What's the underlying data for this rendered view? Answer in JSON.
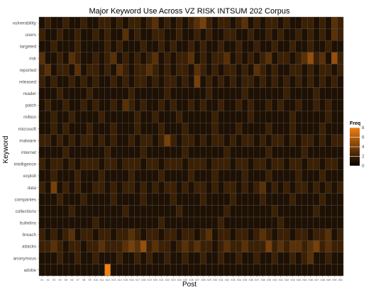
{
  "chart_data": {
    "type": "heatmap",
    "title": "Major Keyword Use Across VZ RISK INTSUM 202 Corpus",
    "xlabel": "Post",
    "ylabel": "Keyword",
    "x": [
      "X1",
      "X2",
      "X3",
      "X4",
      "X5",
      "X6",
      "X7",
      "X8",
      "X9",
      "X10",
      "X11",
      "X12",
      "X13",
      "X14",
      "X15",
      "X16",
      "X17",
      "X18",
      "X19",
      "X20",
      "X21",
      "X22",
      "X23",
      "X24",
      "X25",
      "X26",
      "X27",
      "X28",
      "X29",
      "X30",
      "X31",
      "X32",
      "X33",
      "X34",
      "X35",
      "X36",
      "X37",
      "X38",
      "X39",
      "X40",
      "X41",
      "X42",
      "X43",
      "X44",
      "X45",
      "X46",
      "X47",
      "X48",
      "X49",
      "X50",
      "X51"
    ],
    "y": [
      "vulnerability",
      "users",
      "targeted",
      "risk",
      "reported",
      "released",
      "reader",
      "patch",
      "million",
      "microsoft",
      "malware",
      "internet",
      "intelligence",
      "exploit",
      "data",
      "companies",
      "collections",
      "bulletins",
      "breach",
      "attacks",
      "anonymous",
      "adobe"
    ],
    "z": [
      [
        1,
        2,
        1,
        1,
        2,
        1,
        1,
        2,
        1,
        1,
        2,
        2,
        1,
        2,
        1,
        2,
        2,
        1,
        2,
        3,
        1,
        2,
        1,
        2,
        1,
        2,
        3,
        4,
        2,
        1,
        2,
        2,
        1,
        2,
        3,
        1,
        2,
        1,
        2,
        2,
        1,
        2,
        1,
        1,
        2,
        2,
        1,
        2,
        1,
        3,
        2
      ],
      [
        2,
        1,
        1,
        2,
        1,
        1,
        2,
        1,
        1,
        2,
        1,
        2,
        1,
        1,
        3,
        1,
        2,
        1,
        1,
        2,
        2,
        1,
        1,
        2,
        1,
        1,
        2,
        1,
        2,
        1,
        1,
        2,
        2,
        1,
        1,
        2,
        1,
        1,
        2,
        1,
        2,
        1,
        1,
        2,
        1,
        2,
        1,
        2,
        1,
        3,
        2
      ],
      [
        1,
        1,
        2,
        1,
        1,
        1,
        2,
        1,
        1,
        1,
        1,
        2,
        1,
        2,
        1,
        1,
        1,
        2,
        1,
        1,
        2,
        1,
        2,
        1,
        1,
        2,
        1,
        2,
        1,
        1,
        2,
        1,
        1,
        2,
        1,
        1,
        2,
        1,
        1,
        2,
        1,
        1,
        2,
        1,
        1,
        2,
        1,
        1,
        2,
        1,
        1
      ],
      [
        3,
        1,
        1,
        2,
        1,
        3,
        2,
        1,
        1,
        2,
        1,
        2,
        3,
        1,
        2,
        1,
        2,
        1,
        2,
        3,
        1,
        2,
        1,
        2,
        2,
        3,
        1,
        2,
        1,
        2,
        2,
        3,
        1,
        2,
        1,
        2,
        1,
        2,
        3,
        1,
        2,
        2,
        1,
        2,
        3,
        5,
        2,
        3,
        1,
        5,
        2
      ],
      [
        2,
        3,
        1,
        2,
        2,
        1,
        3,
        1,
        2,
        2,
        1,
        2,
        1,
        3,
        2,
        1,
        2,
        2,
        3,
        2,
        1,
        2,
        1,
        2,
        2,
        1,
        3,
        2,
        1,
        2,
        1,
        2,
        2,
        1,
        2,
        1,
        3,
        2,
        1,
        2,
        1,
        1,
        2,
        2,
        1,
        2,
        1,
        2,
        2,
        1,
        2
      ],
      [
        2,
        1,
        2,
        1,
        1,
        2,
        1,
        2,
        1,
        2,
        1,
        1,
        2,
        1,
        2,
        1,
        2,
        2,
        1,
        2,
        1,
        2,
        2,
        1,
        2,
        1,
        4,
        1,
        2,
        1,
        2,
        1,
        2,
        1,
        2,
        2,
        1,
        2,
        1,
        2,
        1,
        2,
        1,
        2,
        1,
        2,
        1,
        2,
        1,
        2,
        1
      ],
      [
        1,
        1,
        1,
        2,
        1,
        1,
        1,
        1,
        2,
        1,
        1,
        1,
        1,
        1,
        1,
        2,
        1,
        1,
        1,
        1,
        1,
        2,
        1,
        1,
        1,
        1,
        1,
        1,
        2,
        1,
        1,
        1,
        1,
        1,
        2,
        1,
        1,
        1,
        1,
        1,
        1,
        2,
        1,
        1,
        1,
        1,
        2,
        1,
        1,
        1,
        1
      ],
      [
        1,
        2,
        1,
        1,
        2,
        1,
        1,
        2,
        1,
        2,
        1,
        1,
        2,
        1,
        3,
        2,
        1,
        2,
        1,
        1,
        2,
        1,
        2,
        1,
        1,
        2,
        1,
        2,
        1,
        1,
        2,
        1,
        1,
        2,
        1,
        2,
        1,
        1,
        2,
        1,
        2,
        1,
        1,
        2,
        1,
        1,
        2,
        1,
        2,
        1,
        1
      ],
      [
        1,
        1,
        2,
        1,
        1,
        2,
        1,
        1,
        1,
        1,
        2,
        1,
        1,
        1,
        1,
        1,
        2,
        1,
        1,
        2,
        1,
        1,
        1,
        2,
        1,
        1,
        1,
        1,
        1,
        2,
        1,
        1,
        1,
        1,
        1,
        2,
        1,
        1,
        1,
        1,
        1,
        1,
        2,
        1,
        1,
        1,
        1,
        1,
        2,
        1,
        1
      ],
      [
        1,
        1,
        2,
        1,
        2,
        1,
        1,
        1,
        2,
        1,
        1,
        1,
        2,
        1,
        1,
        1,
        2,
        1,
        1,
        1,
        2,
        1,
        1,
        1,
        2,
        1,
        1,
        1,
        1,
        2,
        1,
        1,
        1,
        2,
        1,
        1,
        1,
        1,
        2,
        1,
        1,
        1,
        2,
        1,
        1,
        1,
        1,
        2,
        1,
        1,
        1
      ],
      [
        2,
        2,
        1,
        2,
        1,
        2,
        1,
        2,
        2,
        1,
        2,
        1,
        2,
        1,
        1,
        2,
        1,
        2,
        2,
        1,
        2,
        4,
        2,
        1,
        2,
        2,
        1,
        2,
        1,
        2,
        2,
        1,
        2,
        1,
        2,
        2,
        1,
        2,
        1,
        2,
        2,
        1,
        2,
        1,
        2,
        2,
        1,
        2,
        1,
        2,
        2
      ],
      [
        1,
        1,
        1,
        1,
        2,
        1,
        1,
        1,
        1,
        1,
        1,
        2,
        1,
        1,
        1,
        1,
        1,
        2,
        1,
        1,
        1,
        1,
        1,
        1,
        2,
        1,
        1,
        1,
        1,
        1,
        1,
        2,
        1,
        1,
        1,
        1,
        1,
        1,
        2,
        1,
        1,
        1,
        1,
        1,
        2,
        1,
        1,
        1,
        1,
        1,
        1
      ],
      [
        2,
        1,
        2,
        2,
        1,
        2,
        1,
        2,
        2,
        2,
        1,
        2,
        2,
        1,
        2,
        2,
        2,
        1,
        2,
        2,
        1,
        2,
        2,
        2,
        1,
        2,
        2,
        2,
        1,
        2,
        2,
        2,
        1,
        2,
        2,
        1,
        2,
        2,
        1,
        2,
        2,
        1,
        2,
        2,
        1,
        2,
        2,
        1,
        2,
        2,
        1
      ],
      [
        1,
        1,
        2,
        1,
        1,
        1,
        2,
        1,
        1,
        1,
        2,
        1,
        1,
        1,
        1,
        2,
        1,
        1,
        1,
        1,
        2,
        1,
        1,
        1,
        1,
        2,
        1,
        1,
        1,
        2,
        1,
        1,
        1,
        1,
        2,
        1,
        1,
        1,
        2,
        1,
        1,
        1,
        1,
        2,
        1,
        1,
        1,
        2,
        1,
        1,
        1
      ],
      [
        2,
        1,
        4,
        1,
        2,
        1,
        2,
        1,
        1,
        2,
        2,
        1,
        2,
        1,
        2,
        2,
        1,
        2,
        1,
        2,
        1,
        2,
        2,
        1,
        2,
        1,
        2,
        2,
        1,
        2,
        1,
        2,
        2,
        1,
        2,
        1,
        2,
        3,
        1,
        2,
        1,
        2,
        1,
        2,
        2,
        1,
        2,
        1,
        2,
        1,
        2
      ],
      [
        1,
        1,
        1,
        2,
        1,
        1,
        1,
        2,
        1,
        1,
        1,
        1,
        2,
        1,
        1,
        1,
        1,
        2,
        1,
        1,
        1,
        1,
        2,
        1,
        1,
        1,
        1,
        2,
        1,
        1,
        1,
        1,
        2,
        1,
        1,
        1,
        1,
        2,
        1,
        1,
        1,
        1,
        2,
        1,
        1,
        1,
        1,
        2,
        1,
        1,
        1
      ],
      [
        1,
        1,
        1,
        1,
        1,
        2,
        1,
        1,
        1,
        1,
        1,
        1,
        1,
        1,
        2,
        1,
        1,
        1,
        1,
        1,
        1,
        1,
        1,
        2,
        1,
        1,
        1,
        1,
        1,
        1,
        1,
        2,
        1,
        1,
        1,
        1,
        1,
        1,
        1,
        2,
        1,
        1,
        1,
        1,
        1,
        1,
        2,
        1,
        1,
        1,
        1
      ],
      [
        1,
        1,
        1,
        1,
        1,
        1,
        1,
        1,
        1,
        2,
        1,
        1,
        1,
        1,
        1,
        1,
        1,
        1,
        1,
        1,
        2,
        1,
        1,
        1,
        1,
        1,
        1,
        1,
        1,
        1,
        2,
        1,
        1,
        1,
        1,
        1,
        1,
        1,
        1,
        1,
        2,
        1,
        1,
        1,
        1,
        1,
        1,
        1,
        1,
        1,
        1
      ],
      [
        2,
        1,
        2,
        1,
        2,
        3,
        1,
        2,
        2,
        1,
        2,
        2,
        1,
        2,
        2,
        3,
        2,
        1,
        2,
        2,
        1,
        2,
        2,
        1,
        2,
        2,
        1,
        2,
        3,
        1,
        2,
        2,
        1,
        2,
        2,
        1,
        2,
        3,
        2,
        1,
        2,
        2,
        1,
        2,
        2,
        1,
        2,
        2,
        3,
        1,
        2
      ],
      [
        2,
        2,
        3,
        2,
        1,
        2,
        2,
        1,
        2,
        2,
        3,
        2,
        2,
        2,
        3,
        4,
        3,
        5,
        2,
        3,
        2,
        2,
        1,
        2,
        3,
        2,
        3,
        2,
        2,
        1,
        2,
        3,
        2,
        2,
        3,
        2,
        2,
        2,
        4,
        2,
        3,
        2,
        3,
        3,
        2,
        3,
        4,
        2,
        3,
        2,
        2
      ],
      [
        1,
        1,
        1,
        2,
        1,
        1,
        2,
        1,
        1,
        2,
        1,
        1,
        1,
        2,
        1,
        1,
        2,
        1,
        2,
        1,
        1,
        2,
        1,
        1,
        2,
        1,
        1,
        2,
        1,
        1,
        2,
        1,
        1,
        2,
        1,
        1,
        2,
        1,
        1,
        2,
        1,
        1,
        2,
        1,
        2,
        3,
        1,
        1,
        2,
        1,
        1
      ],
      [
        1,
        1,
        1,
        1,
        1,
        1,
        1,
        1,
        1,
        1,
        1,
        8,
        1,
        1,
        1,
        1,
        1,
        1,
        1,
        1,
        1,
        1,
        1,
        1,
        1,
        1,
        1,
        1,
        1,
        1,
        1,
        1,
        1,
        1,
        1,
        1,
        1,
        1,
        1,
        1,
        1,
        1,
        1,
        1,
        1,
        1,
        1,
        1,
        1,
        1,
        1
      ]
    ],
    "legend": {
      "title": "Freq",
      "ticks": [
        0,
        2,
        4,
        6,
        8
      ],
      "placement": "right"
    },
    "zlim": [
      0,
      8
    ],
    "colors": {
      "low": "#000000",
      "high": "#f07f10",
      "grid": "#4d4d4d",
      "text": "#4d4d4d",
      "title": "#000000"
    }
  }
}
